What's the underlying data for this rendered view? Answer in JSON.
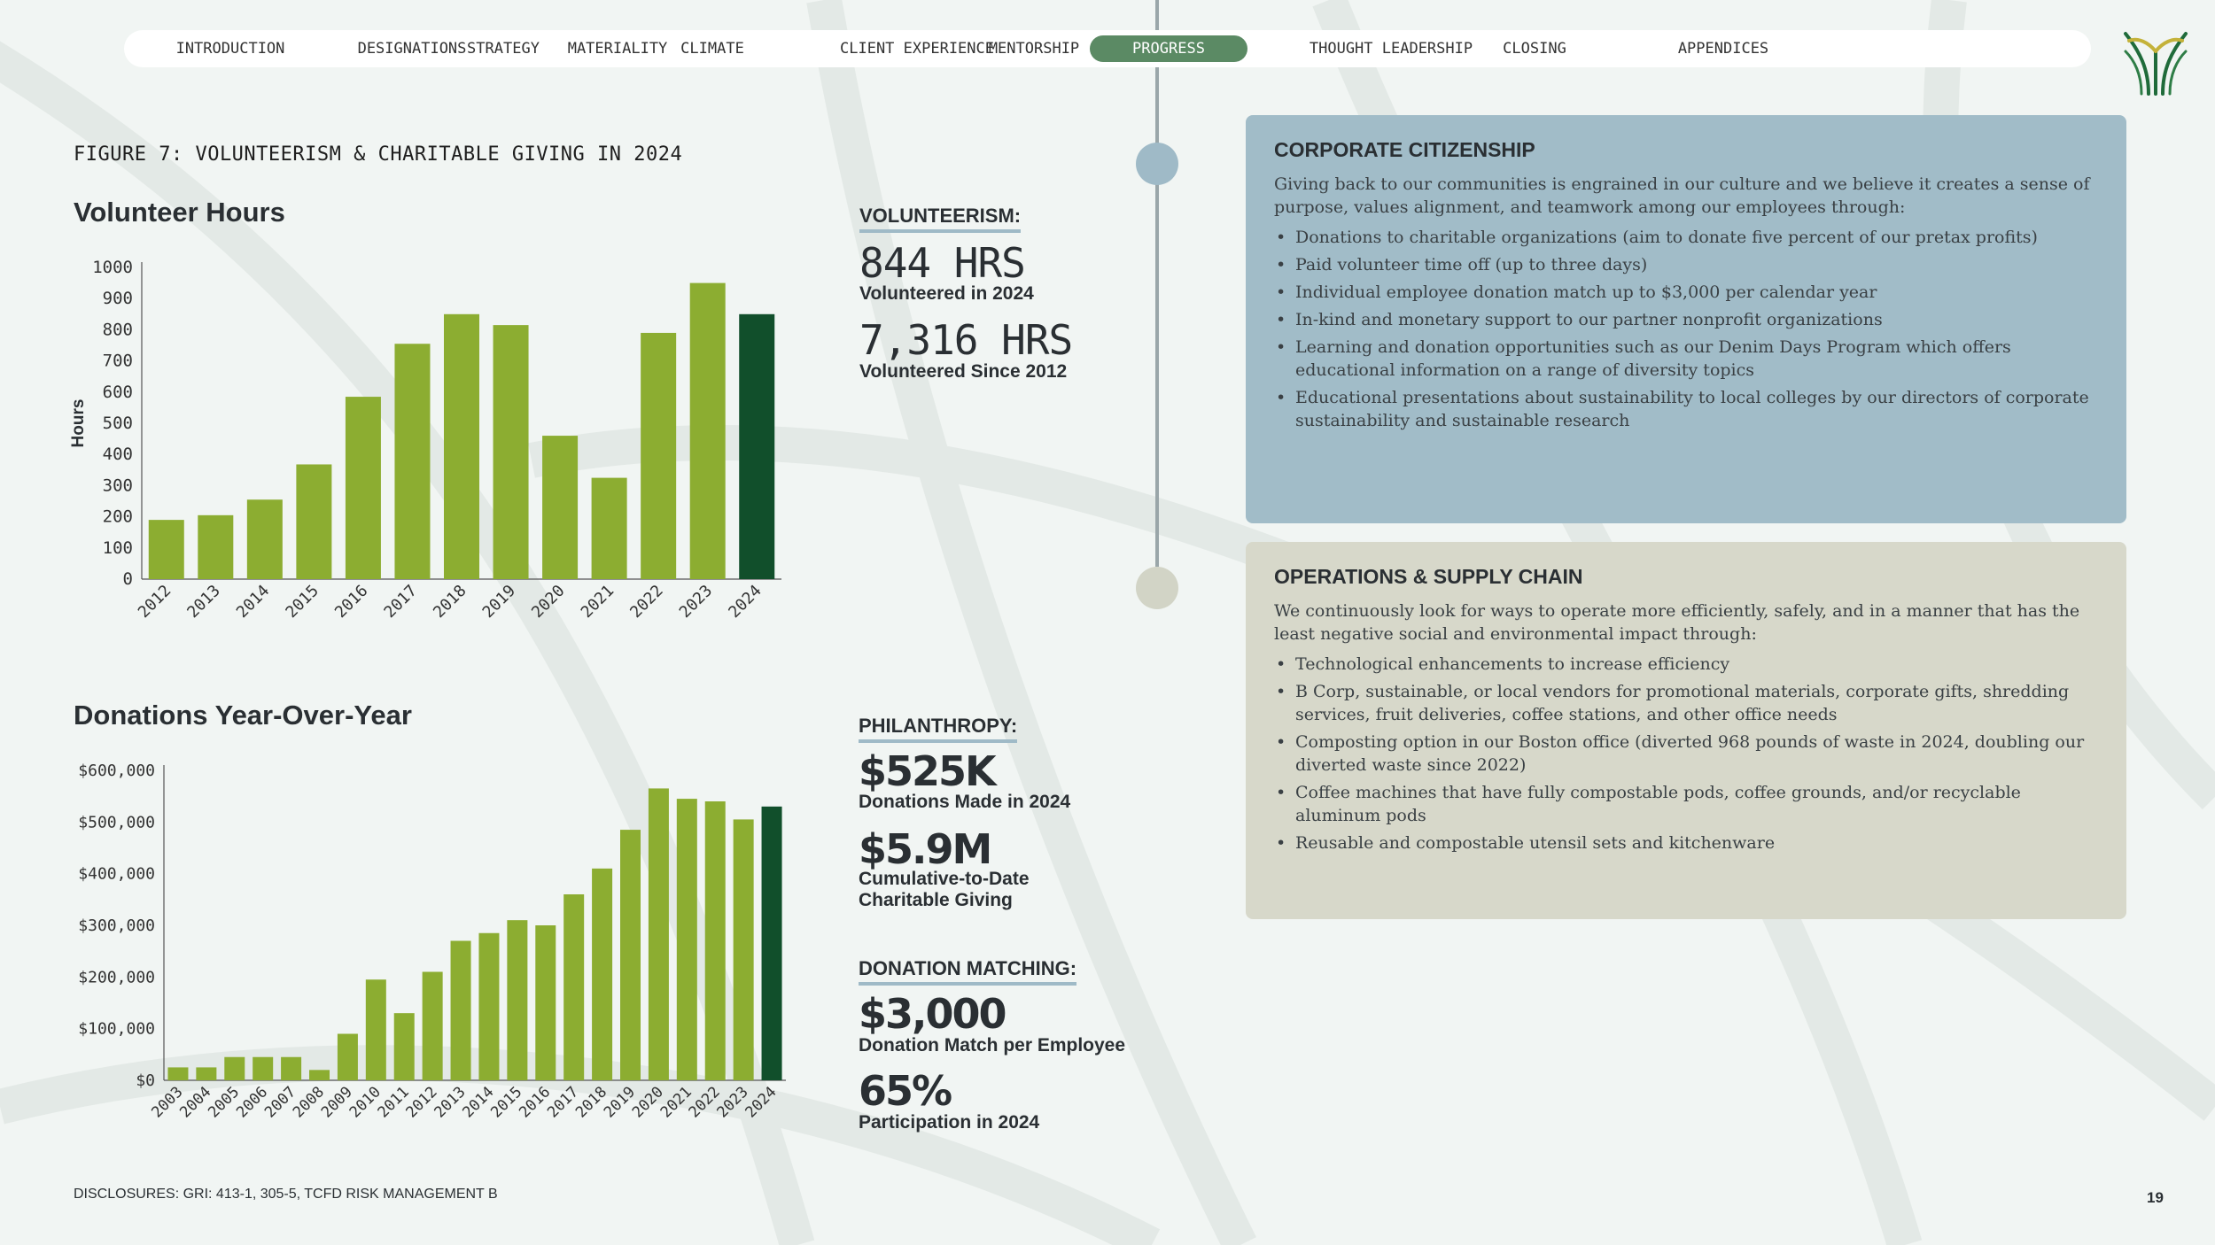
{
  "nav": {
    "items": [
      "INTRODUCTION",
      "DESIGNATIONS",
      "STRATEGY",
      "MATERIALITY",
      "CLIMATE",
      "CLIENT EXPERIENCE",
      "MENTORSHIP",
      "PROGRESS",
      "THOUGHT LEADERSHIP",
      "CLOSING",
      "APPENDICES"
    ],
    "active": "PROGRESS"
  },
  "figure_title": "FIGURE 7: VOLUNTEERISM & CHARITABLE GIVING IN 2024",
  "chart_data": [
    {
      "type": "bar",
      "title": "Volunteer Hours",
      "ylabel": "Hours",
      "ylim": [
        0,
        1000
      ],
      "yticks": [
        0,
        100,
        200,
        300,
        400,
        500,
        600,
        700,
        800,
        900,
        1000
      ],
      "categories": [
        "2012",
        "2013",
        "2014",
        "2015",
        "2016",
        "2017",
        "2018",
        "2019",
        "2020",
        "2021",
        "2022",
        "2023",
        "2024"
      ],
      "values": [
        190,
        205,
        255,
        368,
        585,
        755,
        850,
        815,
        460,
        325,
        790,
        950,
        850
      ],
      "colors": {
        "bar": "#8cad31",
        "highlight": "#114f2b"
      },
      "highlight_index": 12
    },
    {
      "type": "bar",
      "title": "Donations Year-Over-Year",
      "ylim": [
        0,
        600000
      ],
      "yticks": [
        0,
        100000,
        200000,
        300000,
        400000,
        500000,
        600000
      ],
      "ytick_labels": [
        "$0",
        "$100,000",
        "$200,000",
        "$300,000",
        "$400,000",
        "$500,000",
        "$600,000"
      ],
      "categories": [
        "2003",
        "2004",
        "2005",
        "2006",
        "2007",
        "2008",
        "2009",
        "2010",
        "2011",
        "2012",
        "2013",
        "2014",
        "2015",
        "2016",
        "2017",
        "2018",
        "2019",
        "2020",
        "2021",
        "2022",
        "2023",
        "2024"
      ],
      "values": [
        25000,
        25000,
        45000,
        45000,
        45000,
        20000,
        90000,
        195000,
        130000,
        210000,
        270000,
        285000,
        310000,
        300000,
        360000,
        410000,
        485000,
        565000,
        545000,
        540000,
        505000,
        530000
      ],
      "colors": {
        "bar": "#8cad31",
        "highlight": "#114f2b"
      },
      "highlight_index": 21
    }
  ],
  "stats": {
    "volunteerism": {
      "heading": "VOLUNTEERISM:",
      "hrs_2024": "844 HRS",
      "hrs_2024_caption": "Volunteered in 2024",
      "hrs_total": "7,316 HRS",
      "hrs_total_caption": "Volunteered Since 2012"
    },
    "philanthropy": {
      "heading": "PHILANTHROPY:",
      "donations_2024": "$525K",
      "donations_2024_caption": "Donations Made in 2024",
      "cumulative": "$5.9M",
      "cumulative_caption_1": "Cumulative-to-Date",
      "cumulative_caption_2": "Charitable Giving"
    },
    "matching": {
      "heading": "DONATION MATCHING:",
      "match": "$3,000",
      "match_caption": "Donation Match per Employee",
      "participation": "65%",
      "participation_caption": "Participation in 2024"
    }
  },
  "corporate": {
    "title": "CORPORATE CITIZENSHIP",
    "intro": "Giving back to our communities is engrained in our culture and we believe it creates a sense of purpose, values alignment, and teamwork among our employees through:",
    "bullets": [
      "Donations to charitable organizations (aim to donate five percent of our pretax profits)",
      "Paid volunteer time off (up to three days)",
      "Individual employee donation match up to $3,000 per calendar year",
      "In-kind and monetary support to our partner nonprofit organizations",
      "Learning and donation opportunities such as our Denim Days Program which offers educational information on a range of diversity topics",
      "Educational presentations about sustainability to local colleges by our directors of corporate sustainability and sustainable research"
    ]
  },
  "operations": {
    "title": "OPERATIONS & SUPPLY CHAIN",
    "intro": "We continuously look for ways to operate more efficiently, safely, and in a manner that has the least negative social and environmental impact through:",
    "bullets": [
      "Technological enhancements to increase efficiency",
      "B Corp, sustainable, or local vendors for promotional materials, corporate gifts, shredding services, fruit deliveries, coffee stations, and other office needs",
      "Composting option in our Boston office (diverted 968 pounds of waste in 2024, doubling our diverted waste since 2022)",
      "Coffee machines that have fully compostable pods, coffee grounds, and/or recyclable aluminum pods",
      "Reusable and compostable utensil sets and kitchenware"
    ]
  },
  "disclosures": "DISCLOSURES: GRI: 413-1, 305-5, TCFD RISK MANAGEMENT B",
  "page_number": "19"
}
